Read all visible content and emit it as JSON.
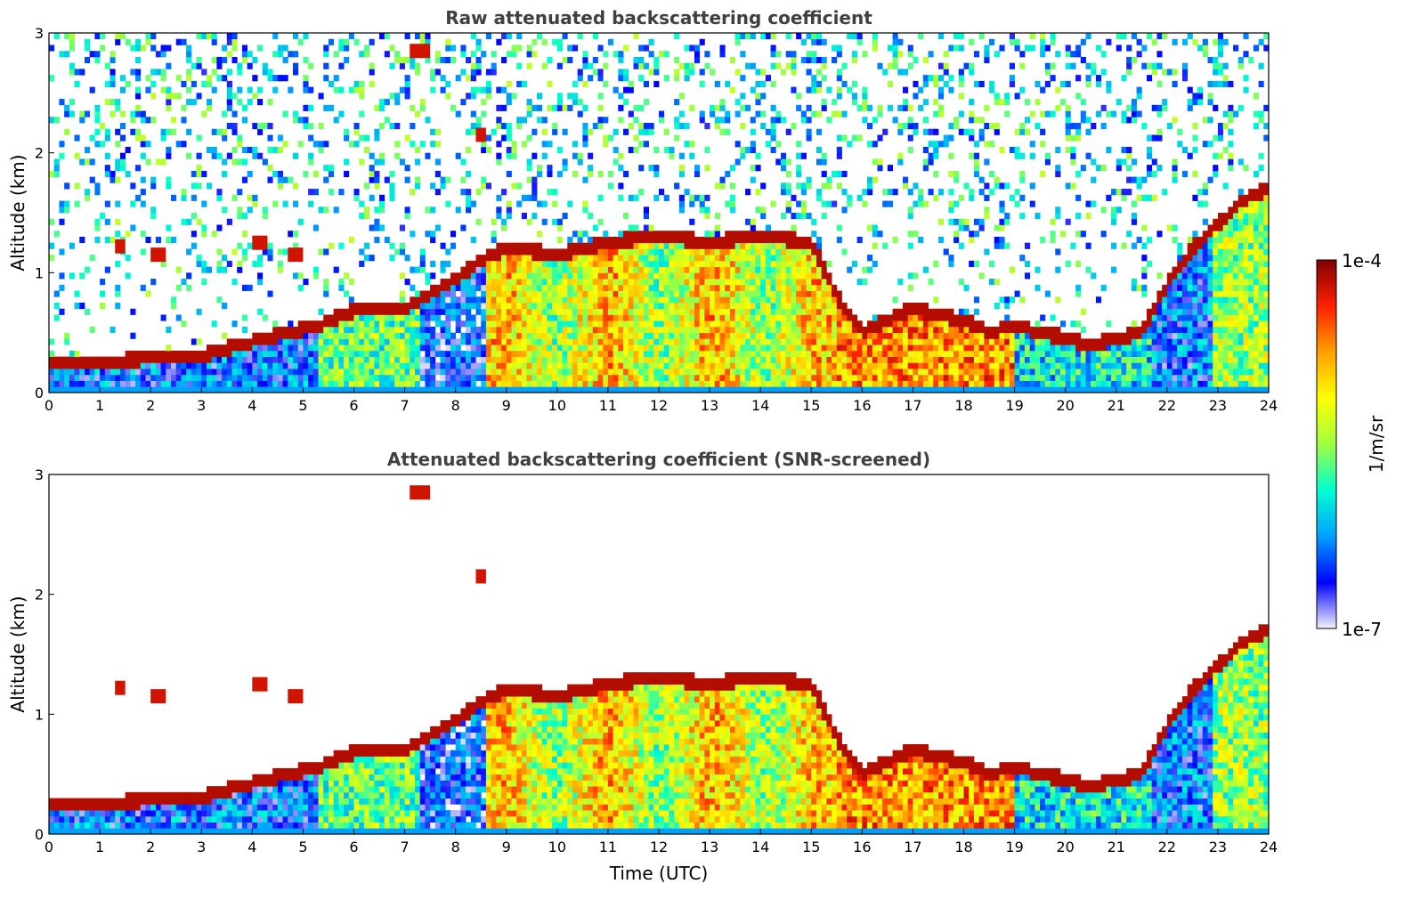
{
  "chart_data": [
    {
      "type": "heatmap",
      "title": "Raw attenuated backscattering coefficient",
      "xlabel": "",
      "ylabel": "Altitude (km)",
      "xlim": [
        0,
        24
      ],
      "ylim": [
        0,
        3
      ],
      "xticks": [
        "0",
        "1",
        "2",
        "3",
        "4",
        "5",
        "6",
        "7",
        "8",
        "9",
        "10",
        "11",
        "12",
        "13",
        "14",
        "15",
        "16",
        "17",
        "18",
        "19",
        "20",
        "21",
        "22",
        "23",
        "24"
      ],
      "yticks": [
        "0",
        "1",
        "2",
        "3"
      ],
      "screened": false,
      "boundary_layer_top_km": {
        "t": [
          0,
          1,
          2,
          3,
          3.5,
          4,
          4.5,
          5,
          5.3,
          6,
          7,
          7.5,
          8,
          8.5,
          9,
          10,
          11,
          12,
          13,
          14,
          15,
          15.5,
          16,
          17,
          18,
          18.5,
          19,
          19.5,
          20,
          20.5,
          21,
          21.5,
          22,
          22.5,
          23,
          23.5,
          24
        ],
        "z": [
          0.25,
          0.25,
          0.28,
          0.3,
          0.36,
          0.42,
          0.48,
          0.52,
          0.55,
          0.68,
          0.7,
          0.82,
          0.95,
          1.1,
          1.2,
          1.15,
          1.25,
          1.3,
          1.25,
          1.3,
          1.25,
          0.8,
          0.5,
          0.7,
          0.6,
          0.5,
          0.55,
          0.5,
          0.45,
          0.38,
          0.45,
          0.5,
          0.9,
          1.2,
          1.4,
          1.6,
          1.7
        ]
      },
      "elevated_layers": [
        {
          "t": [
            1.3,
            1.5
          ],
          "z": 1.22
        },
        {
          "t": [
            2.0,
            2.3
          ],
          "z": 1.15
        },
        {
          "t": [
            4.0,
            4.3
          ],
          "z": 1.25
        },
        {
          "t": [
            4.7,
            5.0
          ],
          "z": 1.15
        },
        {
          "t": [
            7.1,
            7.5
          ],
          "z": 2.85
        },
        {
          "t": [
            8.4,
            8.6
          ],
          "z": 2.15
        }
      ]
    },
    {
      "type": "heatmap",
      "title": "Attenuated backscattering coefficient (SNR-screened)",
      "xlabel": "Time (UTC)",
      "ylabel": "Altitude (km)",
      "xlim": [
        0,
        24
      ],
      "ylim": [
        0,
        3
      ],
      "xticks": [
        "0",
        "1",
        "2",
        "3",
        "4",
        "5",
        "6",
        "7",
        "8",
        "9",
        "10",
        "11",
        "12",
        "13",
        "14",
        "15",
        "16",
        "17",
        "18",
        "19",
        "20",
        "21",
        "22",
        "23",
        "24"
      ],
      "yticks": [
        "0",
        "1",
        "2",
        "3"
      ],
      "screened": true
    }
  ],
  "colorbar": {
    "label": "1/m/sr",
    "max_label": "1e-4",
    "min_label": "1e-7",
    "colors": [
      "#f2f2ff",
      "#0000ff",
      "#00a0ff",
      "#00ffd0",
      "#a0ff40",
      "#ffff00",
      "#ffa000",
      "#ff2000",
      "#800000"
    ]
  }
}
